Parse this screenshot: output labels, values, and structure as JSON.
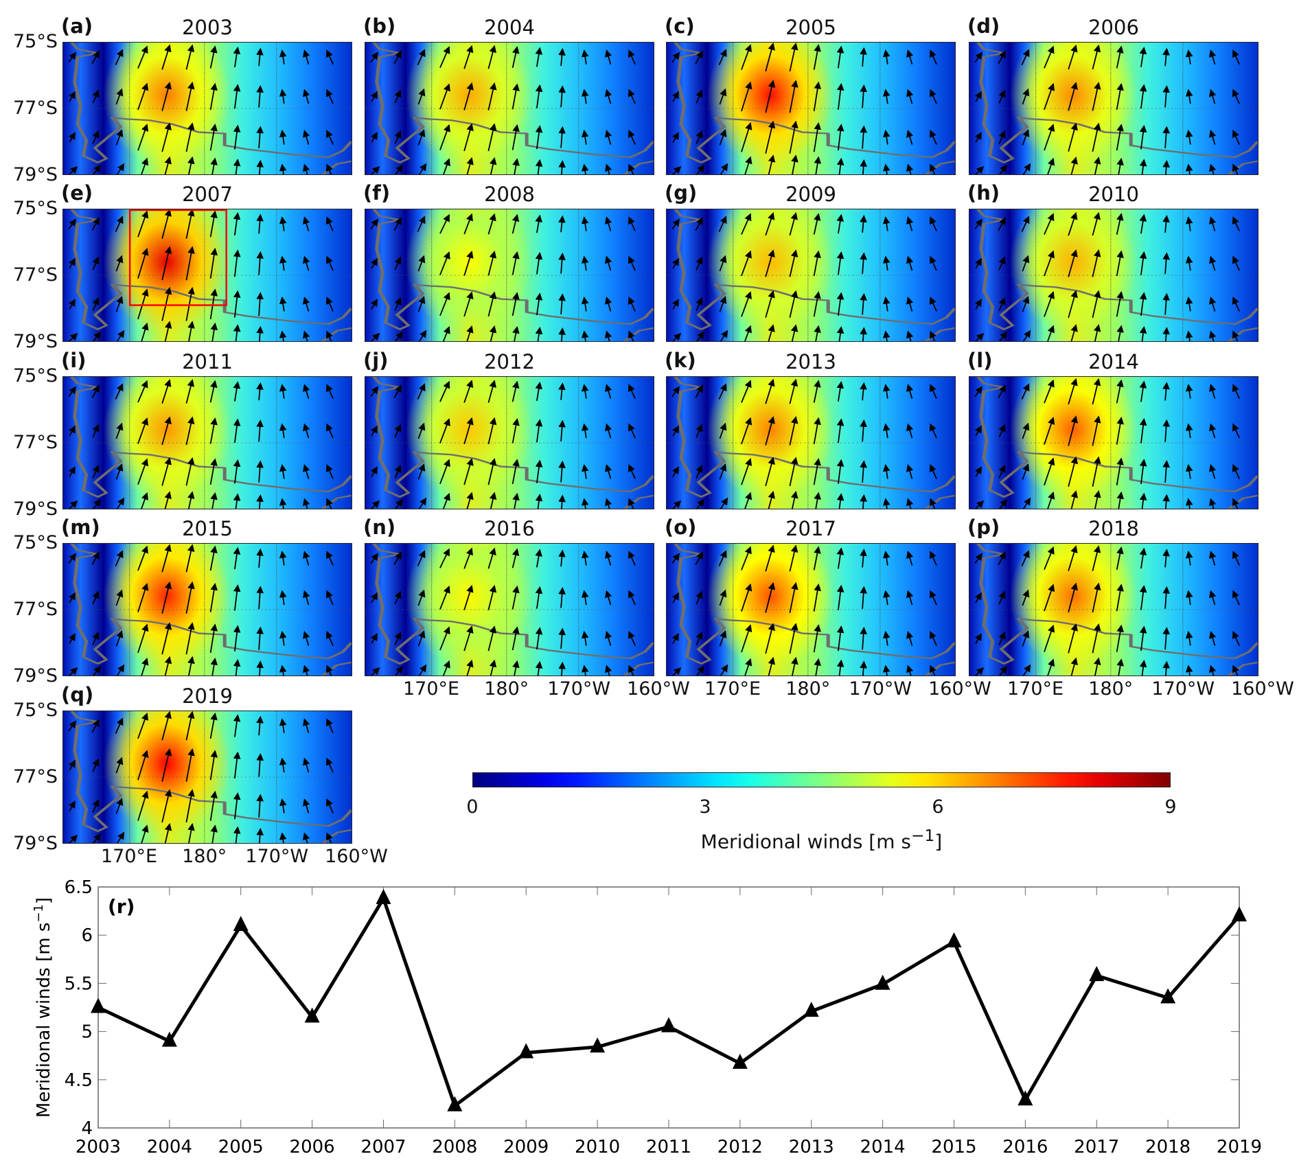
{
  "panels": [
    {
      "label": "(a)",
      "year": "2003"
    },
    {
      "label": "(b)",
      "year": "2004"
    },
    {
      "label": "(c)",
      "year": "2005"
    },
    {
      "label": "(d)",
      "year": "2006"
    },
    {
      "label": "(e)",
      "year": "2007"
    },
    {
      "label": "(f)",
      "year": "2008"
    },
    {
      "label": "(g)",
      "year": "2009"
    },
    {
      "label": "(h)",
      "year": "2010"
    },
    {
      "label": "(i)",
      "year": "2011"
    },
    {
      "label": "(j)",
      "year": "2012"
    },
    {
      "label": "(k)",
      "year": "2013"
    },
    {
      "label": "(l)",
      "year": "2014"
    },
    {
      "label": "(m)",
      "year": "2015"
    },
    {
      "label": "(n)",
      "year": "2016"
    },
    {
      "label": "(o)",
      "year": "2017"
    },
    {
      "label": "(p)",
      "year": "2018"
    },
    {
      "label": "(q)",
      "year": "2019"
    }
  ],
  "map_axes": {
    "lat_labels": [
      "75°S",
      "77°S",
      "79°S"
    ],
    "lon_labels": [
      "170°E",
      "180°",
      "170°W",
      "160°W"
    ]
  },
  "highlight_box_panel": "(e)",
  "colors": {
    "box": "#ff0000",
    "coast": "#6e6e6e",
    "line": "#000000"
  },
  "colorbar": {
    "title": "Meridional winds [m s",
    "title_sup": "−1",
    "title_end": "]",
    "ticks": [
      "0",
      "3",
      "6",
      "9"
    ],
    "range": [
      0,
      9
    ],
    "colormap": "jet"
  },
  "chart_data": {
    "type": "line",
    "panel_label": "(r)",
    "ylabel": "Meridional winds [m s",
    "ylabel_sup": "−1",
    "ylabel_end": "]",
    "xlabel": "",
    "ylim": [
      4,
      6.5
    ],
    "yticks": [
      "4",
      "4.5",
      "5",
      "5.5",
      "6",
      "6.5"
    ],
    "categories": [
      "2003",
      "2004",
      "2005",
      "2006",
      "2007",
      "2008",
      "2009",
      "2010",
      "2011",
      "2012",
      "2013",
      "2014",
      "2015",
      "2016",
      "2017",
      "2018",
      "2019"
    ],
    "values": [
      5.25,
      4.9,
      6.1,
      5.15,
      6.38,
      4.23,
      4.78,
      4.84,
      5.05,
      4.67,
      5.21,
      5.49,
      5.93,
      4.29,
      5.58,
      5.35,
      6.2
    ],
    "marker": "triangle",
    "grid": false
  }
}
